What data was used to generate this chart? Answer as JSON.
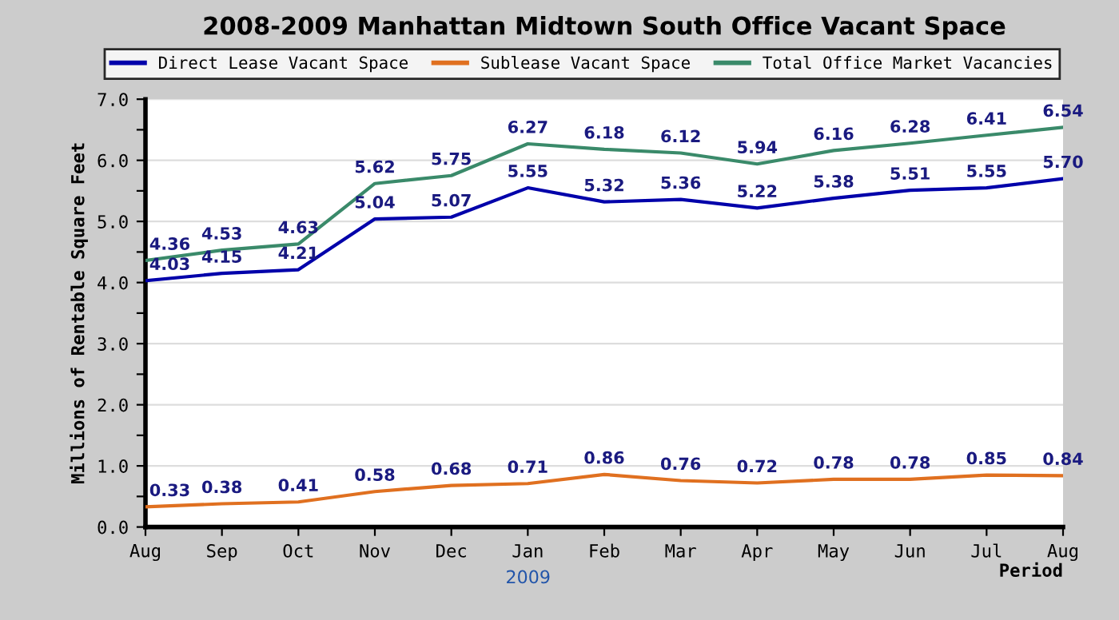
{
  "chart_data": {
    "type": "line",
    "title": "2008-2009 Manhattan Midtown South Office Vacant Space",
    "xlabel": "Period",
    "ylabel": "Millions of Rentable Square Feet",
    "categories": [
      "Aug",
      "Sep",
      "Oct",
      "Nov",
      "Dec",
      "Jan",
      "Feb",
      "Mar",
      "Apr",
      "May",
      "Jun",
      "Jul",
      "Aug"
    ],
    "series": [
      {
        "name": "Direct Lease Vacant Space",
        "color": "#0000aa",
        "values": [
          4.03,
          4.15,
          4.21,
          5.04,
          5.07,
          5.55,
          5.32,
          5.36,
          5.22,
          5.38,
          5.51,
          5.55,
          5.7
        ],
        "value_labels": [
          "4.03",
          "4.15",
          "4.21",
          "5.04",
          "5.07",
          "5.55",
          "5.32",
          "5.36",
          "5.22",
          "5.38",
          "5.51",
          "5.55",
          "5.70"
        ]
      },
      {
        "name": "Sublease Vacant Space",
        "color": "#e07020",
        "values": [
          0.33,
          0.38,
          0.41,
          0.58,
          0.68,
          0.71,
          0.86,
          0.76,
          0.72,
          0.78,
          0.78,
          0.85,
          0.84
        ],
        "value_labels": [
          "0.33",
          "0.38",
          "0.41",
          "0.58",
          "0.68",
          "0.71",
          "0.86",
          "0.76",
          "0.72",
          "0.78",
          "0.78",
          "0.85",
          "0.84"
        ]
      },
      {
        "name": "Total Office Market Vacancies",
        "color": "#3a8a6a",
        "values": [
          4.36,
          4.53,
          4.63,
          5.62,
          5.75,
          6.27,
          6.18,
          6.12,
          5.94,
          6.16,
          6.28,
          6.41,
          6.54
        ],
        "value_labels": [
          "4.36",
          "4.53",
          "4.63",
          "5.62",
          "5.75",
          "6.27",
          "6.18",
          "6.12",
          "5.94",
          "6.16",
          "6.28",
          "6.41",
          "6.54"
        ]
      }
    ],
    "ylim": [
      0,
      7
    ],
    "yticks": [
      {
        "value": 0,
        "label": "0.0"
      },
      {
        "value": 0.5,
        "label": null
      },
      {
        "value": 1,
        "label": "1.0"
      },
      {
        "value": 1.5,
        "label": null
      },
      {
        "value": 2,
        "label": "2.0"
      },
      {
        "value": 2.5,
        "label": null
      },
      {
        "value": 3,
        "label": "3.0"
      },
      {
        "value": 3.5,
        "label": null
      },
      {
        "value": 4,
        "label": "4.0"
      },
      {
        "value": 4.5,
        "label": null
      },
      {
        "value": 5,
        "label": "5.0"
      },
      {
        "value": 5.5,
        "label": null
      },
      {
        "value": 6,
        "label": "6.0"
      },
      {
        "value": 6.5,
        "label": null
      },
      {
        "value": 7,
        "label": "7.0"
      }
    ],
    "grid": "y",
    "legend": "top",
    "marker": "none",
    "line_style": "solid",
    "annotations": [
      "2009"
    ]
  }
}
